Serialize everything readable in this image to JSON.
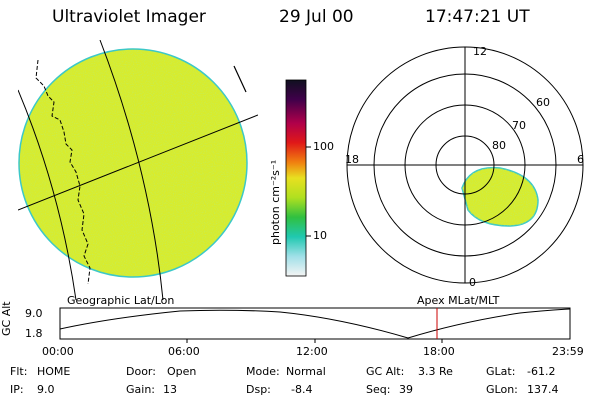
{
  "header": {
    "instrument": "Ultraviolet Imager",
    "date": "29 Jul 00",
    "time": "17:47:21 UT"
  },
  "colorbar": {
    "unit_label": "photon cm⁻²s⁻¹",
    "ticks": [
      "100",
      "10"
    ]
  },
  "polar_plot": {
    "mlt_labels": [
      "12",
      "18",
      "6",
      "0"
    ],
    "lat_labels": [
      "60",
      "70",
      "80"
    ]
  },
  "panel_labels": {
    "left": "Geographic Lat/Lon",
    "right": "Apex MLat/MLT"
  },
  "altitude_plot": {
    "axis_label": "GC Alt",
    "y_ticks": [
      "9.0",
      "1.8"
    ],
    "x_ticks": [
      "00:00",
      "06:00",
      "12:00",
      "18:00",
      "23:59"
    ],
    "marker_color": "#cc0000"
  },
  "status": {
    "filter_label": "Flt:",
    "filter_value": "HOME",
    "door_label": "Door:",
    "door_value": "Open",
    "mode_label": "Mode:",
    "mode_value": "Normal",
    "gcalt_label": "GC Alt:",
    "gcalt_value": "3.3 Re",
    "glat_label": "GLat:",
    "glat_value": "-61.2",
    "ip_label": "IP:",
    "ip_value": "9.0",
    "gain_label": "Gain:",
    "gain_value": "13",
    "dsp_label": "Dsp:",
    "dsp_value": "-8.4",
    "seq_label": "Seq:",
    "seq_value": "39",
    "glon_label": "GLon:",
    "glon_value": "137.4"
  },
  "colors": {
    "image_fill": "#d8ec2c",
    "image_edge": "#3cc8c8",
    "background": "#ffffff"
  }
}
